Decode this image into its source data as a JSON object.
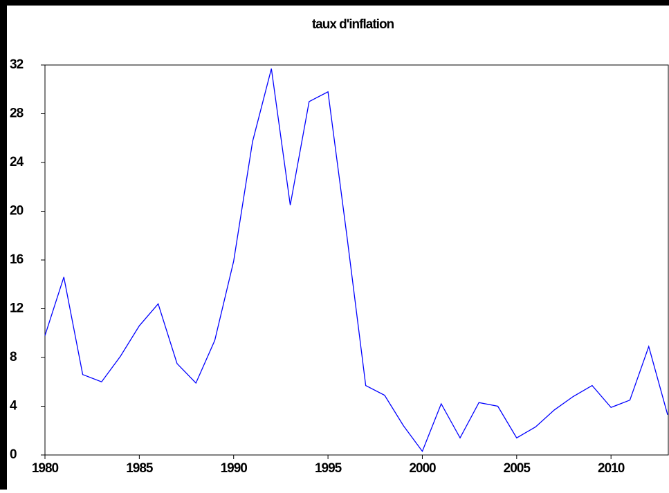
{
  "chart_data": {
    "type": "line",
    "title": "taux d'inflation",
    "x": [
      1980,
      1981,
      1982,
      1983,
      1984,
      1985,
      1986,
      1987,
      1988,
      1989,
      1990,
      1991,
      1992,
      1993,
      1994,
      1995,
      1996,
      1997,
      1998,
      1999,
      2000,
      2001,
      2002,
      2003,
      2004,
      2005,
      2006,
      2007,
      2008,
      2009,
      2010,
      2011,
      2012,
      2013
    ],
    "series": [
      {
        "name": "taux d'inflation",
        "color": "#0000ff",
        "values": [
          9.8,
          14.6,
          6.6,
          6.0,
          8.1,
          10.6,
          12.4,
          7.5,
          5.9,
          9.4,
          15.9,
          25.7,
          31.7,
          20.5,
          29.0,
          29.8,
          18.0,
          5.7,
          4.9,
          2.4,
          0.3,
          4.2,
          1.4,
          4.3,
          4.0,
          1.4,
          2.3,
          3.7,
          4.8,
          5.7,
          3.9,
          4.5,
          8.9,
          3.3
        ]
      }
    ],
    "xlim": [
      1980,
      2013
    ],
    "xticks": [
      1980,
      1985,
      1990,
      1995,
      2000,
      2005,
      2010
    ],
    "ylim": [
      0,
      32
    ],
    "yticks": [
      0,
      4,
      8,
      12,
      16,
      20,
      24,
      28,
      32
    ],
    "grid": false
  }
}
